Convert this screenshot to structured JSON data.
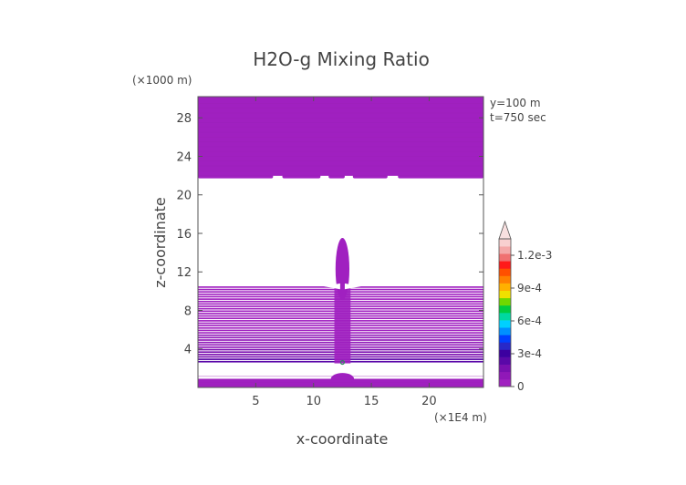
{
  "chart_data": {
    "type": "heatmap",
    "title": "H2O-g Mixing Ratio",
    "xlabel": "x-coordinate",
    "ylabel": "z-coordinate",
    "x_unit": "(×1E4 m)",
    "y_unit": "(×1000 m)",
    "annotations": [
      "y=100 m",
      "t=750 sec"
    ],
    "x_ticks": [
      5,
      10,
      15,
      20
    ],
    "y_ticks": [
      4,
      8,
      12,
      16,
      20,
      24,
      28
    ],
    "xlim": [
      0,
      24.7
    ],
    "ylim": [
      0,
      30.2
    ],
    "colorbar": {
      "tick_labels": [
        "0",
        "3e-4",
        "6e-4",
        "9e-4",
        "1.2e-3"
      ],
      "tick_values": [
        0,
        0.0003,
        0.0006,
        0.0009,
        0.0012
      ],
      "range": [
        0,
        0.00135
      ],
      "colors": [
        "#a020c0",
        "#9018b8",
        "#7a10b0",
        "#5a08a8",
        "#3c00a0",
        "#2828c8",
        "#0040ff",
        "#0090ff",
        "#00d0ff",
        "#00d8a0",
        "#00cc40",
        "#70d800",
        "#f0e000",
        "#ffb000",
        "#ff8000",
        "#ff5000",
        "#ff1a1a",
        "#f07070",
        "#f4a8a8",
        "#f8d0d0"
      ]
    },
    "regions": [
      {
        "name": "upper moist layer",
        "z_range": [
          22,
          30.2
        ],
        "x_range": [
          0,
          24.7
        ],
        "value": 1e-05
      },
      {
        "name": "dry layer",
        "z_range": [
          10.5,
          22
        ],
        "value": 0
      },
      {
        "name": "lower moist layer",
        "z_range": [
          2.5,
          10.5
        ],
        "value_range": [
          1e-05,
          0.00025
        ]
      },
      {
        "name": "plume column",
        "x_range": [
          11.6,
          13.4
        ],
        "z_range": [
          2.5,
          14.2
        ],
        "value": 1e-05
      },
      {
        "name": "dry gap",
        "z_range": [
          1.5,
          2.5
        ],
        "value": 0
      },
      {
        "name": "surface layer",
        "z_range": [
          0,
          1.5
        ],
        "value": 1e-05
      }
    ]
  }
}
